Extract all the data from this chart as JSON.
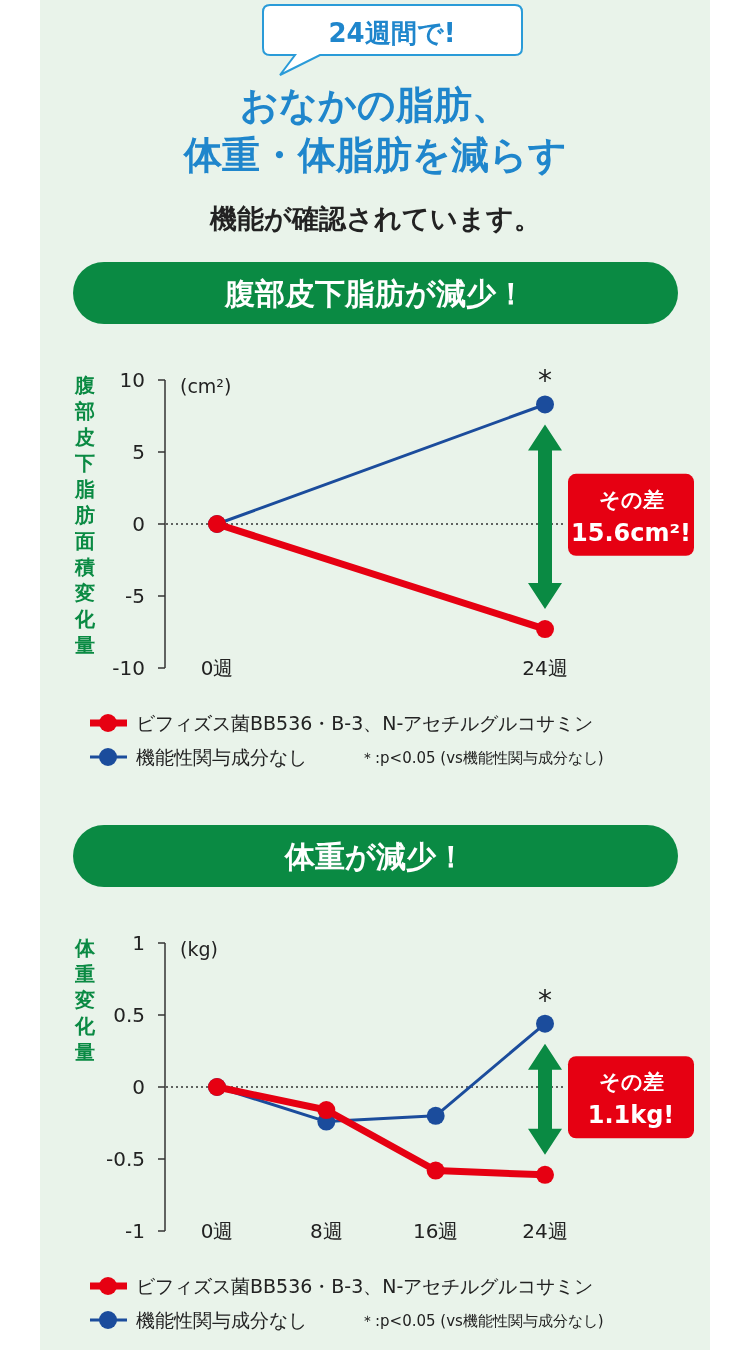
{
  "chart_data": [
    {
      "type": "line",
      "title": "腹部皮下脂肪が減少！",
      "ylabel": "腹部皮下脂肪面積変化量",
      "categories": [
        "0週",
        "24週"
      ],
      "ylim": [
        -10,
        10
      ],
      "yticks": [
        -10,
        -5,
        0,
        5,
        10
      ],
      "marker": "circle",
      "legend": "bottom",
      "ref_lines": [
        {
          "axis": "y",
          "value": 0,
          "line_style": "dotted"
        }
      ],
      "series": [
        {
          "name": "ビフィズス菌BB536・B-3、N-アセチルグルコサミン",
          "color": "#e60012",
          "values": [
            0,
            -7.3
          ]
        },
        {
          "name": "機能性関与成分なし",
          "color": "#1b4c9c",
          "values": [
            0,
            8.3
          ]
        }
      ],
      "annotations": [
        "24週間で!",
        "おなかの脂肪、",
        "体重・体脂肪を減らす",
        "機能が確認されています。",
        "(cm²)",
        "その差\n15.6cm²!",
        {
          "text": "*",
          "x": "24週",
          "y": 8.3
        },
        "＊:p<0.05 (vs機能性関与成分なし)"
      ]
    },
    {
      "type": "line",
      "title": "体重が減少！",
      "ylabel": "体重変化量",
      "categories": [
        "0週",
        "8週",
        "16週",
        "24週"
      ],
      "ylim": [
        -1,
        1
      ],
      "yticks": [
        -1,
        -0.5,
        0,
        0.5,
        1
      ],
      "marker": "circle",
      "legend": "bottom",
      "ref_lines": [
        {
          "axis": "y",
          "value": 0,
          "line_style": "dotted"
        }
      ],
      "series": [
        {
          "name": "ビフィズス菌BB536・B-3、N-アセチルグルコサミン",
          "color": "#e60012",
          "values": [
            0,
            -0.16,
            -0.58,
            -0.61
          ]
        },
        {
          "name": "機能性関与成分なし",
          "color": "#1b4c9c",
          "values": [
            0,
            -0.24,
            -0.2,
            0.44
          ]
        }
      ],
      "annotations": [
        "(kg)",
        "その差\n1.1kg!",
        {
          "text": "*",
          "x": "24週",
          "y": 0.44
        },
        "＊:p<0.05 (vs機能性関与成分なし)"
      ]
    }
  ]
}
